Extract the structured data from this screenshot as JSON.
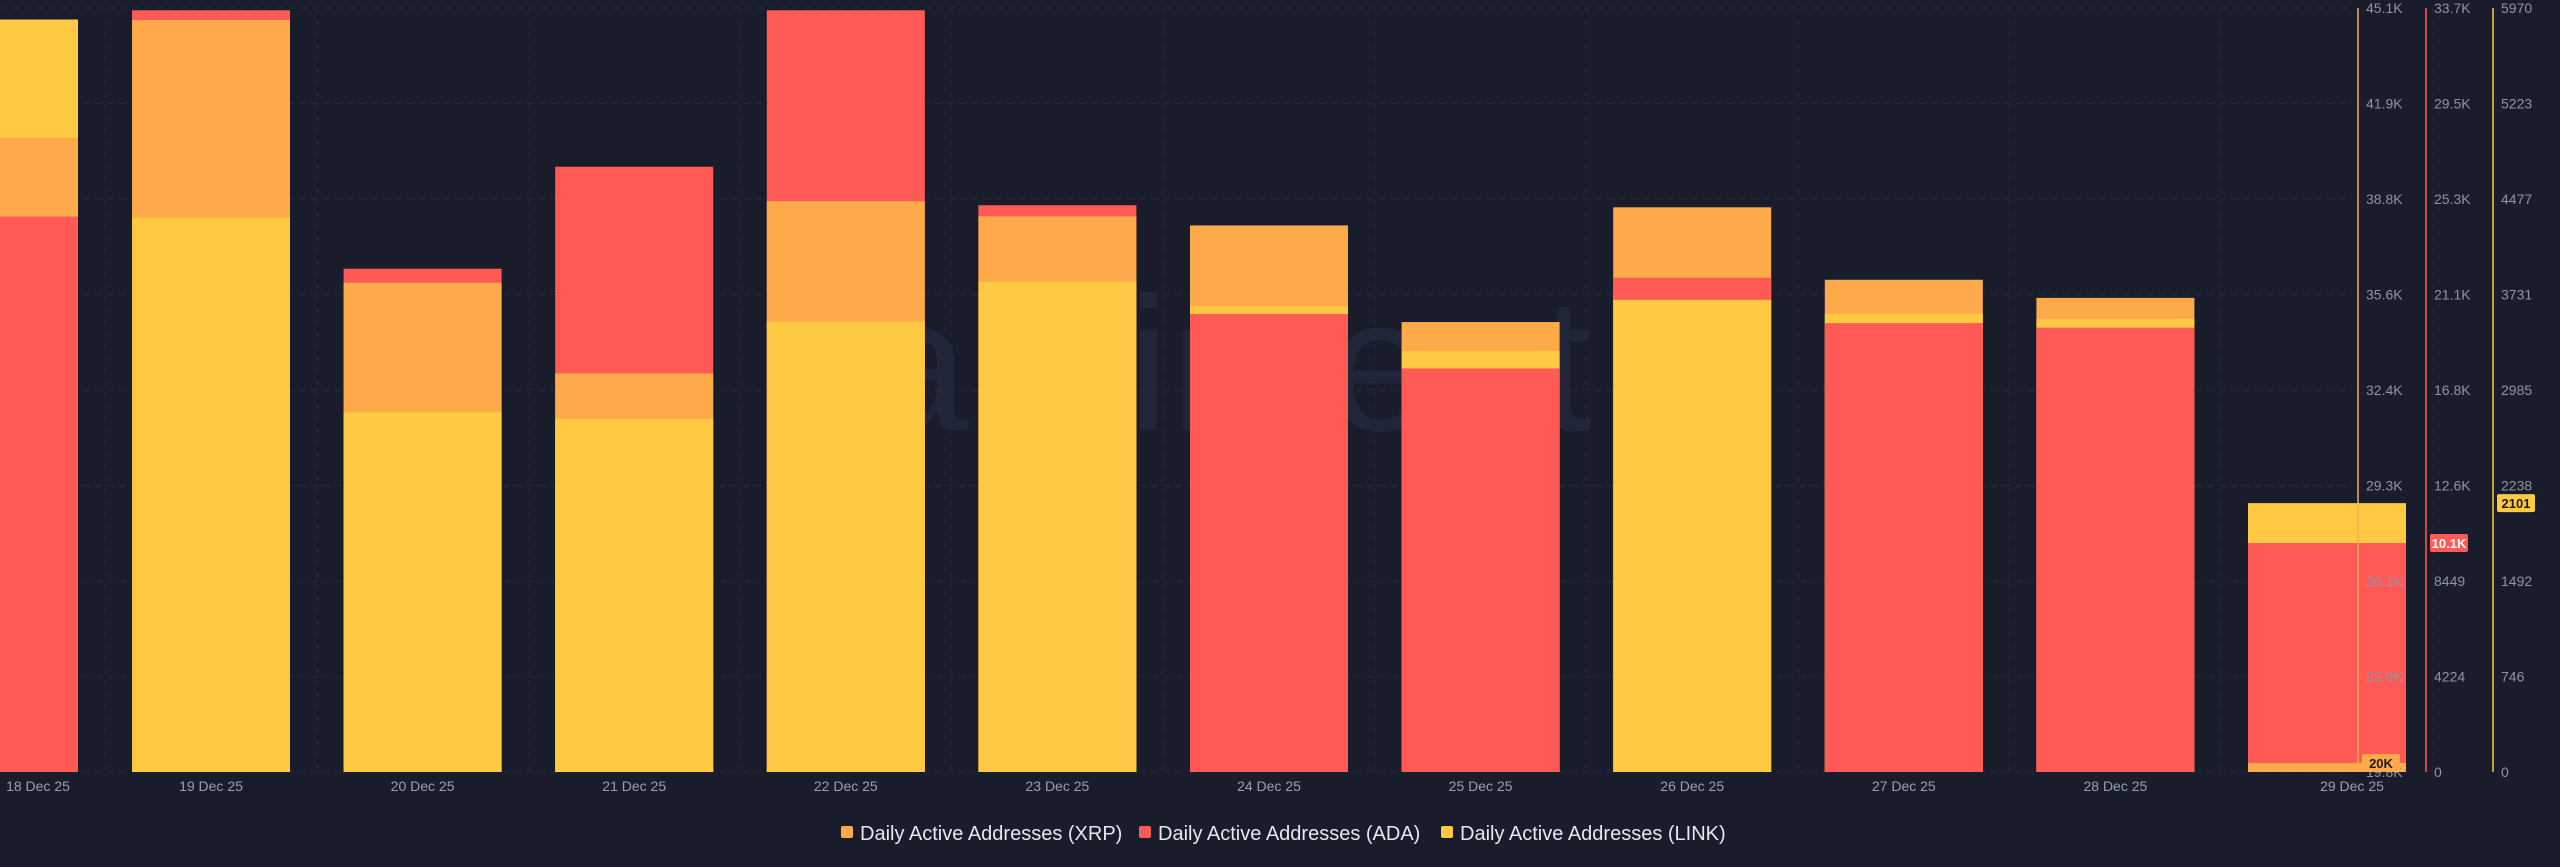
{
  "chart_data": {
    "type": "bar",
    "stacked": true,
    "watermark": "santiment",
    "categories": [
      "18 Dec 25",
      "19 Dec 25",
      "20 Dec 25",
      "21 Dec 25",
      "22 Dec 25",
      "23 Dec 25",
      "24 Dec 25",
      "25 Dec 25",
      "26 Dec 25",
      "27 Dec 25",
      "28 Dec 25",
      "29 Dec 25"
    ],
    "series": [
      {
        "name": "Daily Active Addresses (XRP)",
        "color": "#ffaa4a",
        "axis": "xrp",
        "values": [
          40800,
          44700,
          36000,
          33000,
          38700,
          38200,
          37900,
          34700,
          38500,
          36100,
          35500,
          20100
        ]
      },
      {
        "name": "Daily Active Addresses (ADA)",
        "color": "#ff5a55",
        "axis": "ada",
        "values": [
          24500,
          33600,
          22200,
          26700,
          33600,
          25000,
          20200,
          17800,
          21800,
          19800,
          19600,
          10100
        ]
      },
      {
        "name": "Daily Active Addresses (LINK)",
        "color": "#ffc944",
        "axis": "link",
        "values": [
          5880,
          4330,
          2810,
          2760,
          3520,
          3830,
          3640,
          3290,
          3690,
          3580,
          3540,
          2101
        ]
      }
    ],
    "axes": {
      "xrp": {
        "min": 19800,
        "max": 45100,
        "ticks": [
          "45.1K",
          "41.9K",
          "38.8K",
          "35.6K",
          "32.4K",
          "29.3K",
          "26.1K",
          "22.9K",
          "19.8K"
        ],
        "badge": "20K",
        "badge_value": 20100
      },
      "ada": {
        "min": 0,
        "max": 33700,
        "ticks": [
          "33.7K",
          "29.5K",
          "25.3K",
          "21.1K",
          "16.8K",
          "12.6K",
          "8449",
          "4224",
          "0"
        ],
        "badge": "10.1K",
        "badge_value": 10100
      },
      "link": {
        "min": 0,
        "max": 5970,
        "ticks": [
          "5970",
          "5223",
          "4477",
          "3731",
          "2985",
          "2238",
          "1492",
          "746",
          "0"
        ],
        "badge": "2101",
        "badge_value": 2101
      }
    }
  }
}
